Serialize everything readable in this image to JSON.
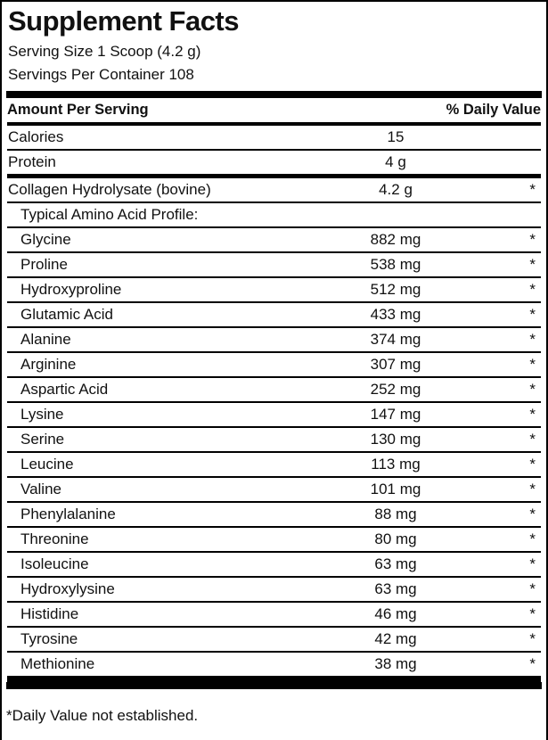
{
  "label": {
    "title": "Supplement Facts",
    "serving_size": "Serving Size 1 Scoop (4.2 g)",
    "servings_per_container": "Servings Per Container 108",
    "header": {
      "amount_col": "Amount Per Serving",
      "dv_col": "% Daily Value"
    },
    "rows": [
      {
        "name": "Calories",
        "amount": "15",
        "dv": "",
        "indent": false,
        "sep": "thin"
      },
      {
        "name": "Protein",
        "amount": "4 g",
        "dv": "",
        "indent": false,
        "sep": "thick"
      },
      {
        "name": "Collagen Hydrolysate (bovine)",
        "amount": "4.2 g",
        "dv": "*",
        "indent": false,
        "sep": "thin"
      },
      {
        "name": "Typical Amino Acid Profile:",
        "amount": "",
        "dv": "",
        "indent": true,
        "sep": "thin"
      },
      {
        "name": "Glycine",
        "amount": "882 mg",
        "dv": "*",
        "indent": true,
        "sep": "thin"
      },
      {
        "name": "Proline",
        "amount": "538 mg",
        "dv": "*",
        "indent": true,
        "sep": "thin"
      },
      {
        "name": "Hydroxyproline",
        "amount": "512 mg",
        "dv": "*",
        "indent": true,
        "sep": "thin"
      },
      {
        "name": "Glutamic Acid",
        "amount": "433 mg",
        "dv": "*",
        "indent": true,
        "sep": "thin"
      },
      {
        "name": "Alanine",
        "amount": "374 mg",
        "dv": "*",
        "indent": true,
        "sep": "thin"
      },
      {
        "name": "Arginine",
        "amount": "307 mg",
        "dv": "*",
        "indent": true,
        "sep": "thin"
      },
      {
        "name": "Aspartic Acid",
        "amount": "252 mg",
        "dv": "*",
        "indent": true,
        "sep": "thin"
      },
      {
        "name": "Lysine",
        "amount": "147 mg",
        "dv": "*",
        "indent": true,
        "sep": "thin"
      },
      {
        "name": "Serine",
        "amount": "130 mg",
        "dv": "*",
        "indent": true,
        "sep": "thin"
      },
      {
        "name": "Leucine",
        "amount": "113 mg",
        "dv": "*",
        "indent": true,
        "sep": "thin"
      },
      {
        "name": "Valine",
        "amount": "101 mg",
        "dv": "*",
        "indent": true,
        "sep": "thin"
      },
      {
        "name": "Phenylalanine",
        "amount": "88 mg",
        "dv": "*",
        "indent": true,
        "sep": "thin"
      },
      {
        "name": "Threonine",
        "amount": "80 mg",
        "dv": "*",
        "indent": true,
        "sep": "thin"
      },
      {
        "name": "Isoleucine",
        "amount": "63 mg",
        "dv": "*",
        "indent": true,
        "sep": "thin"
      },
      {
        "name": "Hydroxylysine",
        "amount": "63 mg",
        "dv": "*",
        "indent": true,
        "sep": "thin"
      },
      {
        "name": "Histidine",
        "amount": "46 mg",
        "dv": "*",
        "indent": true,
        "sep": "thin"
      },
      {
        "name": "Tyrosine",
        "amount": "42 mg",
        "dv": "*",
        "indent": true,
        "sep": "thin"
      },
      {
        "name": "Methionine",
        "amount": "38 mg",
        "dv": "*",
        "indent": true,
        "sep": "heavy"
      }
    ],
    "footnote": "*Daily Value not established.",
    "colors": {
      "text": "#111111",
      "rule": "#000000",
      "background": "#ffffff"
    }
  }
}
